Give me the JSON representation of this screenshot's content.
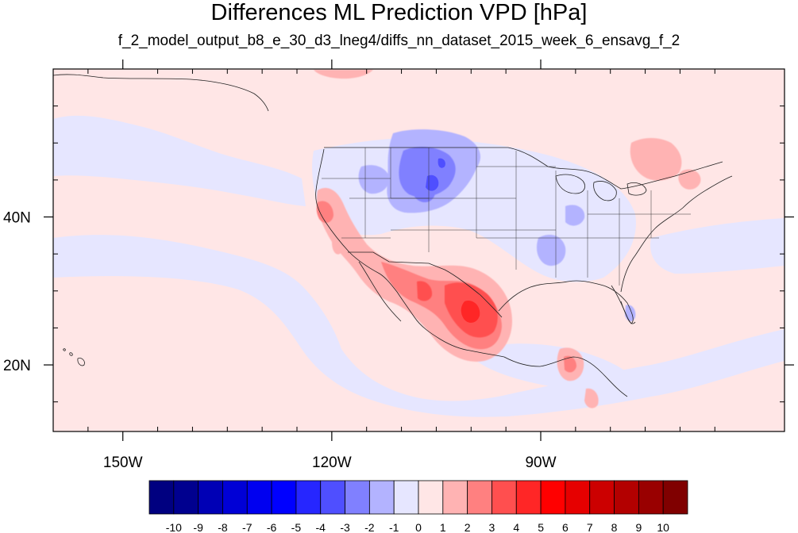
{
  "title": "Differences ML Prediction VPD [hPa]",
  "subtitle": "f_2_model_output_b8_e_30_d3_lneg4/diffs_nn_dataset_2015_week_6_ensavg_f_2",
  "map": {
    "projection": "cylindrical equidistant",
    "lon_range": [
      -160,
      -55
    ],
    "lat_range": [
      11,
      60
    ],
    "lon_ticks": [
      {
        "value": -150,
        "label": "150W"
      },
      {
        "value": -120,
        "label": "120W"
      },
      {
        "value": -90,
        "label": "90W"
      }
    ],
    "lat_ticks": [
      {
        "value": 40,
        "label": "40N"
      },
      {
        "value": 20,
        "label": "20N"
      }
    ],
    "background_value": 0.5
  },
  "colorbar": {
    "labels": [
      "-10",
      "-9",
      "-8",
      "-7",
      "-6",
      "-5",
      "-4",
      "-3",
      "-2",
      "-1",
      "0",
      "1",
      "2",
      "3",
      "4",
      "5",
      "6",
      "7",
      "8",
      "9",
      "10"
    ],
    "colors": [
      "#000080",
      "#00008f",
      "#0000b5",
      "#0000d6",
      "#0000f0",
      "#0000ff",
      "#2626ff",
      "#4f4fff",
      "#8080ff",
      "#b3b3ff",
      "#e6e6ff",
      "#ffe6e6",
      "#ffb3b3",
      "#ff8080",
      "#ff4f4f",
      "#ff2626",
      "#ff0000",
      "#e60000",
      "#cc0000",
      "#b30000",
      "#990000",
      "#800000"
    ]
  },
  "field_regions": [
    {
      "label": "central Pacific negative band",
      "value": -0.5,
      "lon": -145,
      "lat": 32
    },
    {
      "label": "northern Rockies negative",
      "value": -2.5,
      "lon": -108,
      "lat": 45
    },
    {
      "label": "Mississippi valley negative",
      "value": -1.5,
      "lon": -91,
      "lat": 36
    },
    {
      "label": "Texas / northern Mexico positive",
      "value": 4.5,
      "lon": -102,
      "lat": 29
    },
    {
      "label": "Arizona positive",
      "value": 2.5,
      "lon": -112,
      "lat": 32
    },
    {
      "label": "California positive",
      "value": 2.5,
      "lon": -120,
      "lat": 38
    },
    {
      "label": "southeast Canada positive",
      "value": 1.5,
      "lon": -80,
      "lat": 50
    },
    {
      "label": "Central America positive",
      "value": 2.5,
      "lon": -90,
      "lat": 20
    }
  ]
}
